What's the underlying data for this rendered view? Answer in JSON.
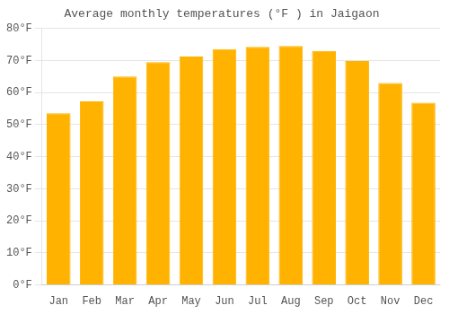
{
  "chart_data": {
    "type": "bar",
    "title": "Average monthly temperatures (°F ) in Jaigaon",
    "categories": [
      "Jan",
      "Feb",
      "Mar",
      "Apr",
      "May",
      "Jun",
      "Jul",
      "Aug",
      "Sep",
      "Oct",
      "Nov",
      "Dec"
    ],
    "values": [
      53.5,
      57.2,
      65.0,
      69.5,
      71.2,
      73.5,
      74.2,
      74.5,
      73.0,
      69.8,
      63.0,
      56.8
    ],
    "color": "#FFB300",
    "ylim": [
      0,
      80
    ],
    "yticks": [
      {
        "value": 0,
        "label": "0°F"
      },
      {
        "value": 10,
        "label": "10°F"
      },
      {
        "value": 20,
        "label": "20°F"
      },
      {
        "value": 30,
        "label": "30°F"
      },
      {
        "value": 40,
        "label": "40°F"
      },
      {
        "value": 50,
        "label": "50°F"
      },
      {
        "value": 60,
        "label": "60°F"
      },
      {
        "value": 70,
        "label": "70°F"
      },
      {
        "value": 80,
        "label": "80°F"
      }
    ],
    "grid": true
  }
}
